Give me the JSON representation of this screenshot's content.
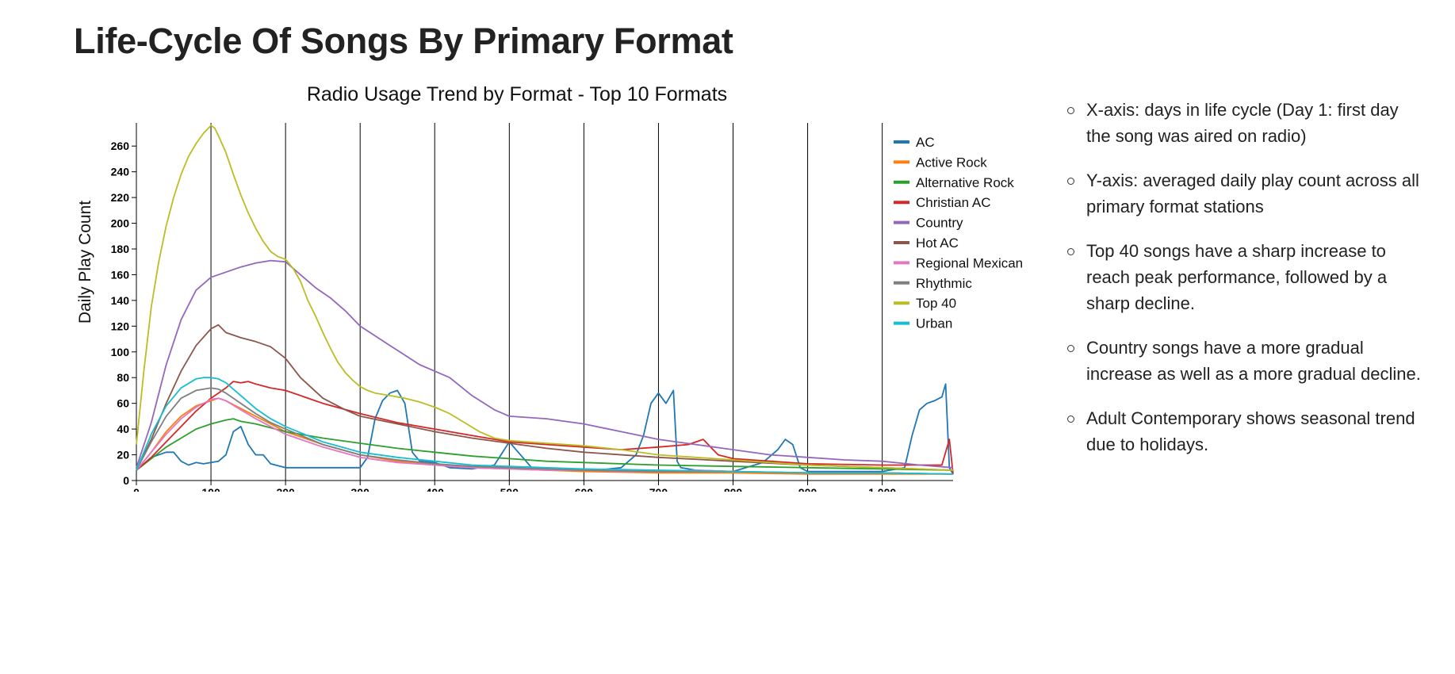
{
  "page": {
    "title": "Life-Cycle Of Songs By Primary Format"
  },
  "notes": [
    "X-axis: days in life cycle (Day 1: first day the song was aired on radio)",
    "Y-axis: averaged daily play count across all primary format stations",
    "Top 40 songs have a sharp increase to reach peak performance, followed by a sharp decline.",
    "Country songs have a more gradual increase as well as a more gradual decline.",
    "Adult Contemporary shows seasonal trend due to holidays."
  ],
  "chart_data": {
    "type": "line",
    "title": "Radio Usage Trend by Format - Top 10 Formats",
    "xlabel": "",
    "ylabel": "Daily Play Count",
    "xlim": [
      0,
      1095
    ],
    "ylim": [
      0,
      278
    ],
    "x_ticks": [
      0,
      100,
      200,
      300,
      400,
      500,
      600,
      700,
      800,
      900,
      1000
    ],
    "x_tick_labels": [
      "0",
      "100",
      "200",
      "300",
      "400",
      "500",
      "600",
      "700",
      "800",
      "900",
      "1,000"
    ],
    "y_ticks": [
      0,
      20,
      40,
      60,
      80,
      100,
      120,
      140,
      160,
      180,
      200,
      220,
      240,
      260
    ],
    "grid": "vertical lines at x ticks",
    "legend_position": "top-right",
    "series": [
      {
        "name": "AC",
        "color": "#1f77b4",
        "x": [
          0,
          20,
          40,
          50,
          60,
          70,
          80,
          90,
          100,
          110,
          120,
          130,
          140,
          150,
          160,
          170,
          180,
          200,
          250,
          300,
          310,
          320,
          330,
          340,
          350,
          360,
          370,
          380,
          400,
          420,
          450,
          480,
          500,
          530,
          600,
          650,
          670,
          680,
          690,
          700,
          710,
          720,
          725,
          730,
          750,
          800,
          840,
          860,
          870,
          880,
          890,
          900,
          950,
          1000,
          1030,
          1040,
          1050,
          1060,
          1070,
          1080,
          1085,
          1090,
          1095
        ],
        "y": [
          8,
          18,
          22,
          22,
          15,
          12,
          14,
          13,
          14,
          15,
          20,
          38,
          42,
          28,
          20,
          20,
          13,
          10,
          10,
          10,
          18,
          48,
          62,
          68,
          70,
          60,
          22,
          15,
          14,
          10,
          9,
          12,
          30,
          10,
          7,
          10,
          20,
          35,
          60,
          68,
          60,
          70,
          15,
          10,
          8,
          7,
          14,
          24,
          32,
          28,
          10,
          7,
          7,
          7,
          10,
          35,
          55,
          60,
          62,
          65,
          75,
          10,
          5
        ]
      },
      {
        "name": "Active Rock",
        "color": "#ff7f0e",
        "x": [
          0,
          20,
          40,
          60,
          80,
          100,
          110,
          120,
          140,
          160,
          180,
          200,
          250,
          300,
          350,
          400,
          450,
          500,
          550,
          600,
          700,
          800,
          900,
          1000,
          1095
        ],
        "y": [
          8,
          22,
          38,
          50,
          58,
          62,
          64,
          62,
          56,
          50,
          44,
          38,
          28,
          20,
          15,
          12,
          10,
          9,
          8,
          7,
          6,
          6,
          5,
          5,
          5
        ]
      },
      {
        "name": "Alternative Rock",
        "color": "#2ca02c",
        "x": [
          0,
          20,
          40,
          60,
          80,
          100,
          120,
          130,
          140,
          160,
          180,
          200,
          250,
          300,
          350,
          400,
          450,
          500,
          550,
          600,
          700,
          800,
          900,
          1000,
          1095
        ],
        "y": [
          8,
          17,
          26,
          33,
          40,
          44,
          47,
          48,
          46,
          44,
          41,
          38,
          33,
          29,
          25,
          22,
          19,
          17,
          15,
          14,
          12,
          11,
          10,
          9,
          8
        ]
      },
      {
        "name": "Christian AC",
        "color": "#d62728",
        "x": [
          0,
          20,
          40,
          60,
          80,
          100,
          120,
          130,
          140,
          150,
          160,
          180,
          200,
          250,
          300,
          350,
          400,
          450,
          500,
          550,
          600,
          650,
          700,
          740,
          760,
          780,
          800,
          850,
          900,
          1000,
          1080,
          1090,
          1095
        ],
        "y": [
          8,
          18,
          30,
          42,
          54,
          64,
          72,
          77,
          76,
          77,
          75,
          72,
          70,
          60,
          52,
          45,
          40,
          35,
          30,
          28,
          26,
          24,
          26,
          28,
          32,
          20,
          17,
          15,
          13,
          12,
          12,
          32,
          5
        ]
      },
      {
        "name": "Country",
        "color": "#9467bd",
        "x": [
          0,
          20,
          40,
          60,
          80,
          100,
          120,
          140,
          160,
          180,
          200,
          220,
          240,
          260,
          280,
          300,
          340,
          380,
          400,
          420,
          450,
          480,
          500,
          550,
          600,
          650,
          700,
          750,
          800,
          850,
          900,
          950,
          1000,
          1050,
          1095
        ],
        "y": [
          10,
          45,
          90,
          125,
          148,
          158,
          162,
          166,
          169,
          171,
          170,
          160,
          150,
          142,
          132,
          120,
          105,
          90,
          85,
          80,
          66,
          55,
          50,
          48,
          44,
          38,
          32,
          28,
          24,
          20,
          18,
          16,
          15,
          12,
          10
        ]
      },
      {
        "name": "Hot AC",
        "color": "#8c564b",
        "x": [
          0,
          20,
          40,
          60,
          80,
          100,
          110,
          120,
          140,
          160,
          180,
          200,
          220,
          250,
          280,
          300,
          350,
          400,
          450,
          500,
          550,
          600,
          700,
          800,
          900,
          1000,
          1095
        ],
        "y": [
          8,
          32,
          60,
          85,
          105,
          118,
          121,
          115,
          111,
          108,
          104,
          95,
          80,
          64,
          55,
          50,
          44,
          38,
          33,
          29,
          25,
          22,
          18,
          15,
          12,
          10,
          8
        ]
      },
      {
        "name": "Regional Mexican",
        "color": "#e377c2",
        "x": [
          0,
          20,
          40,
          60,
          80,
          100,
          110,
          120,
          140,
          160,
          180,
          200,
          250,
          300,
          350,
          400,
          450,
          500,
          550,
          600,
          650,
          700,
          750,
          800,
          900,
          1000,
          1095
        ],
        "y": [
          8,
          22,
          36,
          48,
          57,
          63,
          64,
          62,
          55,
          48,
          42,
          36,
          26,
          18,
          14,
          12,
          10,
          9,
          8,
          8,
          7,
          7,
          8,
          7,
          6,
          6,
          5
        ]
      },
      {
        "name": "Rhythmic",
        "color": "#7f7f7f",
        "x": [
          0,
          20,
          40,
          60,
          80,
          100,
          110,
          120,
          140,
          160,
          180,
          200,
          250,
          300,
          350,
          400,
          450,
          500,
          550,
          600,
          700,
          800,
          900,
          1000,
          1095
        ],
        "y": [
          8,
          30,
          50,
          64,
          70,
          72,
          71,
          68,
          60,
          52,
          45,
          40,
          28,
          20,
          16,
          13,
          11,
          10,
          9,
          8,
          7,
          7,
          6,
          6,
          5
        ]
      },
      {
        "name": "Top 40",
        "color": "#bcbd22",
        "x": [
          0,
          10,
          20,
          30,
          40,
          50,
          60,
          70,
          80,
          90,
          95,
          100,
          105,
          110,
          120,
          130,
          140,
          150,
          160,
          170,
          180,
          190,
          200,
          210,
          220,
          230,
          240,
          250,
          260,
          270,
          280,
          290,
          300,
          310,
          320,
          340,
          360,
          380,
          400,
          420,
          440,
          460,
          480,
          500,
          550,
          600,
          650,
          700,
          750,
          800,
          850,
          900,
          950,
          1000,
          1050,
          1095
        ],
        "y": [
          28,
          85,
          135,
          170,
          198,
          220,
          238,
          252,
          262,
          270,
          273,
          276,
          274,
          268,
          255,
          238,
          222,
          208,
          196,
          186,
          178,
          174,
          172,
          165,
          155,
          140,
          128,
          115,
          103,
          92,
          84,
          78,
          73,
          70,
          68,
          66,
          64,
          61,
          57,
          52,
          45,
          38,
          33,
          31,
          29,
          27,
          24,
          20,
          18,
          16,
          14,
          12,
          11,
          10,
          9,
          8
        ]
      },
      {
        "name": "Urban",
        "color": "#17becf",
        "x": [
          0,
          20,
          40,
          60,
          80,
          90,
          100,
          110,
          120,
          140,
          160,
          180,
          200,
          250,
          300,
          350,
          400,
          450,
          500,
          550,
          600,
          700,
          800,
          900,
          1000,
          1095
        ],
        "y": [
          8,
          36,
          58,
          72,
          79,
          80,
          80,
          79,
          76,
          66,
          56,
          48,
          42,
          30,
          22,
          18,
          15,
          12,
          11,
          10,
          9,
          8,
          7,
          6,
          6,
          5
        ]
      }
    ]
  }
}
